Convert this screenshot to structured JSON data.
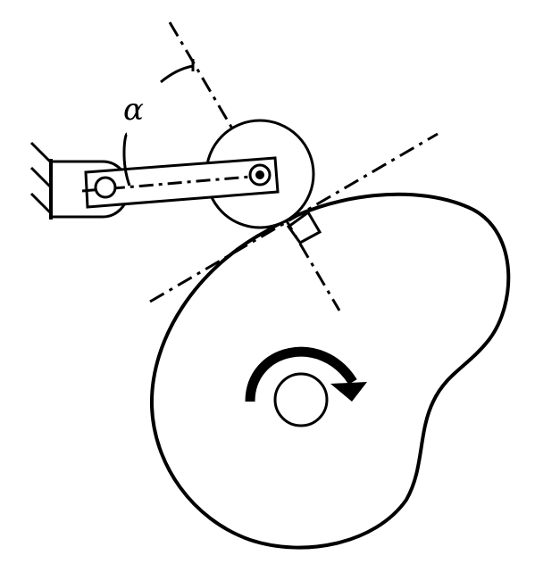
{
  "diagram": {
    "angle_label": "α",
    "line_color": "#000000",
    "background": "#ffffff",
    "elements": [
      "cam-profile",
      "cam-shaft-hole",
      "rotation-arrow",
      "roller-follower",
      "follower-arm",
      "arm-pivot",
      "fixed-support",
      "tangent-line",
      "normal-line",
      "right-angle-mark",
      "pressure-angle-arc"
    ]
  }
}
